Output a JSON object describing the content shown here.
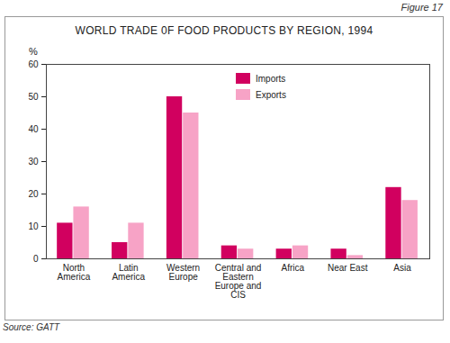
{
  "chart_data": {
    "type": "bar",
    "title": "WORLD TRADE 0F FOOD PRODUCTS BY REGION, 1994",
    "annotations": [
      "Figure 17"
    ],
    "caption": "Source: GATT",
    "ylabel": "%",
    "categories": [
      "North America",
      "Latin America",
      "Western Europe",
      "Central and Eastern Europe and CIS",
      "Africa",
      "Near East",
      "Asia"
    ],
    "series": [
      {
        "name": "Imports",
        "color": "#d1005f",
        "values": [
          11,
          5,
          50,
          4,
          3,
          3,
          22
        ]
      },
      {
        "name": "Exports",
        "color": "#f7a3c6",
        "values": [
          16,
          11,
          45,
          3,
          4,
          1,
          18
        ]
      }
    ],
    "ylim": [
      0,
      60
    ],
    "yticks": [
      0,
      10,
      20,
      30,
      40,
      50,
      60
    ],
    "grid": false,
    "legend": "top-right"
  }
}
